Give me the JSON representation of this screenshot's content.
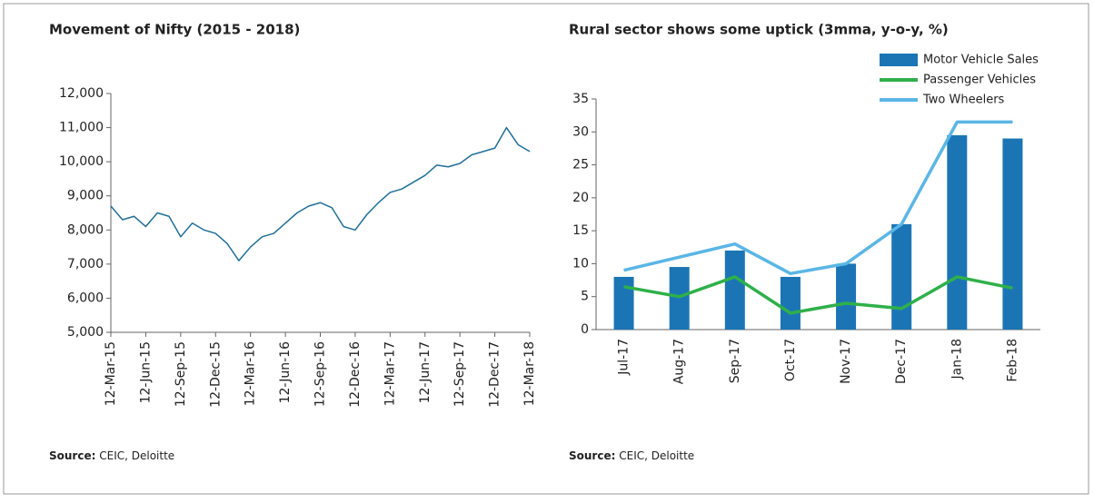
{
  "chart_data": [
    {
      "type": "line",
      "title": "Movement of Nifty (2015 - 2018)",
      "categories": [
        "12-Mar-15",
        null,
        null,
        "12-Jun-15",
        null,
        null,
        "12-Sep-15",
        null,
        null,
        "12-Dec-15",
        null,
        null,
        "12-Mar-16",
        null,
        null,
        "12-Jun-16",
        null,
        null,
        "12-Sep-16",
        null,
        null,
        "12-Dec-16",
        null,
        null,
        "12-Mar-17",
        null,
        null,
        "12-Jun-17",
        null,
        null,
        "12-Sep-17",
        null,
        null,
        "12-Dec-17",
        null,
        null,
        "12-Mar-18"
      ],
      "series": [
        {
          "name": "Nifty",
          "color": "#1f6f9a",
          "values": [
            8700,
            8300,
            8400,
            8100,
            8500,
            8400,
            7800,
            8200,
            8000,
            7900,
            7600,
            7100,
            7500,
            7800,
            7900,
            8200,
            8500,
            8700,
            8800,
            8650,
            8100,
            8000,
            8450,
            8800,
            9100,
            9200,
            9400,
            9600,
            9900,
            9850,
            9950,
            10200,
            10300,
            10400,
            11000,
            10500,
            10300
          ]
        }
      ],
      "ylim": [
        5000,
        12000
      ],
      "yticks": [
        {
          "value": 5000,
          "label": "5,000"
        },
        {
          "value": 6000,
          "label": "6,000"
        },
        {
          "value": 7000,
          "label": "7,000"
        },
        {
          "value": 8000,
          "label": "8,000"
        },
        {
          "value": 9000,
          "label": "9,000"
        },
        {
          "value": 10000,
          "label": "10,000"
        },
        {
          "value": 11000,
          "label": "11,000"
        },
        {
          "value": 12000,
          "label": "12,000"
        }
      ],
      "source_label": "Source:",
      "source": "CEIC, Deloitte"
    },
    {
      "type": "bar",
      "title": "Rural sector shows some uptick (3mma, y-o-y, %)",
      "categories": [
        "Jul-17",
        "Aug-17",
        "Sep-17",
        "Oct-17",
        "Nov-17",
        "Dec-17",
        "Jan-18",
        "Feb-18"
      ],
      "series": [
        {
          "name": "Motor Vehicle Sales",
          "type": "bar",
          "color": "#1b75b5",
          "values": [
            8,
            9.5,
            12,
            8,
            10,
            16,
            29.5,
            29
          ]
        },
        {
          "name": "Passenger Vehicles",
          "type": "line",
          "color": "#2fb04a",
          "values": [
            6.5,
            5,
            8,
            2.5,
            4,
            3.2,
            8,
            6.3
          ]
        },
        {
          "name": "Two Wheelers",
          "type": "line",
          "color": "#5ab6e6",
          "values": [
            9,
            11,
            13,
            8.5,
            10,
            16,
            31.5,
            31.5
          ]
        }
      ],
      "ylim": [
        0,
        35
      ],
      "yticks": [
        0,
        5,
        10,
        15,
        20,
        25,
        30,
        35
      ],
      "source_label": "Source:",
      "source": "CEIC, Deloitte"
    }
  ]
}
